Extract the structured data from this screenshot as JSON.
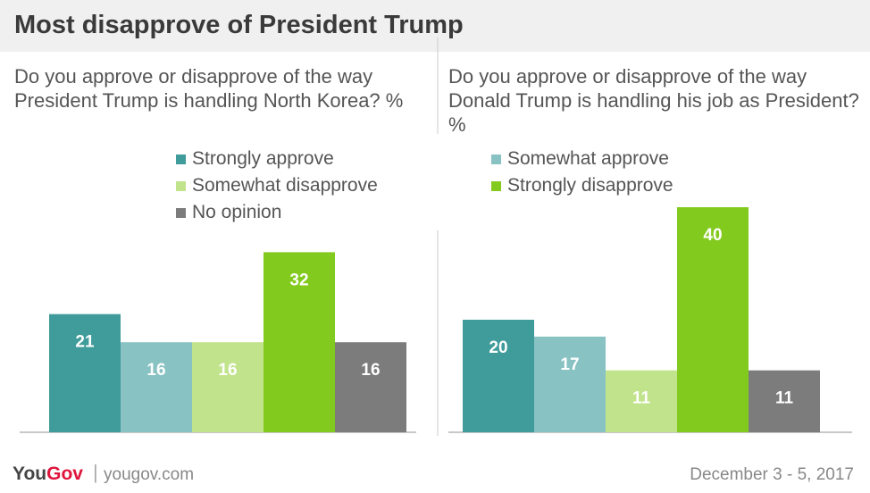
{
  "title": "Most disapprove of President Trump",
  "brand": {
    "you": "You",
    "gov": "Gov",
    "url": "yougov.com",
    "separator": "|"
  },
  "date": "December 3 - 5, 2017",
  "legend": [
    {
      "label": "Strongly approve",
      "color": "#3f9c9b"
    },
    {
      "label": "Somewhat approve",
      "color": "#88c2c3"
    },
    {
      "label": "Somewhat disapprove",
      "color": "#c1e38c"
    },
    {
      "label": "Strongly disapprove",
      "color": "#83ca1e"
    },
    {
      "label": "No opinion",
      "color": "#7c7c7c"
    }
  ],
  "chart_data": [
    {
      "type": "bar",
      "title": "Do you approve or disapprove of the way President Trump is handling North Korea? %",
      "categories": [
        "Strongly approve",
        "Somewhat approve",
        "Somewhat disapprove",
        "Strongly disapprove",
        "No opinion"
      ],
      "values": [
        21,
        16,
        16,
        32,
        16
      ],
      "colors": [
        "#3f9c9b",
        "#88c2c3",
        "#c1e38c",
        "#83ca1e",
        "#7c7c7c"
      ],
      "ylim": [
        0,
        40
      ],
      "grid": false
    },
    {
      "type": "bar",
      "title": "Do you approve or disapprove of the way Donald Trump is handling his job as President? %",
      "categories": [
        "Strongly approve",
        "Somewhat approve",
        "Somewhat disapprove",
        "Strongly disapprove",
        "No opinion"
      ],
      "values": [
        20,
        17,
        11,
        40,
        11
      ],
      "colors": [
        "#3f9c9b",
        "#88c2c3",
        "#c1e38c",
        "#83ca1e",
        "#7c7c7c"
      ],
      "ylim": [
        0,
        40
      ],
      "grid": false
    }
  ]
}
